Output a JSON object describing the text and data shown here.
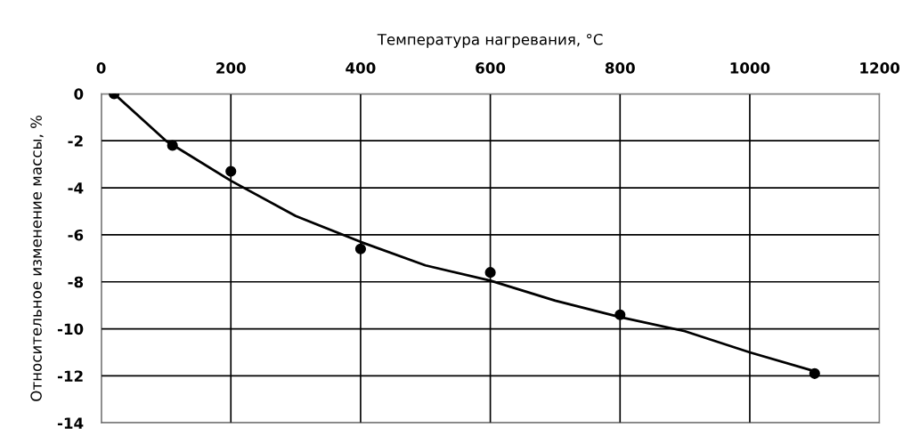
{
  "chart_data": {
    "type": "scatter",
    "xlabel": "Температура нагревания, °C",
    "ylabel": "Относительное изменение массы, %",
    "xlim": [
      0,
      1200
    ],
    "xticks": [
      0,
      200,
      400,
      600,
      800,
      1000,
      1200
    ],
    "ylim": [
      -14,
      0
    ],
    "yticks": [
      -14,
      -12,
      -10,
      -8,
      -6,
      -4,
      -2,
      0
    ],
    "grid": true,
    "series": [
      {
        "color": "#000000",
        "marker": "circle",
        "x": [
          20,
          110,
          200,
          400,
          600,
          800,
          1100
        ],
        "values": [
          0,
          -2.2,
          -3.3,
          -6.6,
          -7.6,
          -9.4,
          -11.9
        ]
      },
      {
        "type": "line",
        "color": "#000000",
        "marker": "none",
        "line_style": "solid",
        "x": [
          20,
          100,
          200,
          300,
          400,
          500,
          600,
          700,
          800,
          900,
          1000,
          1100
        ],
        "values": [
          0,
          -2.0,
          -3.7,
          -5.2,
          -6.3,
          -7.3,
          -7.95,
          -8.8,
          -9.5,
          -10.1,
          -11.0,
          -11.8
        ]
      }
    ]
  }
}
